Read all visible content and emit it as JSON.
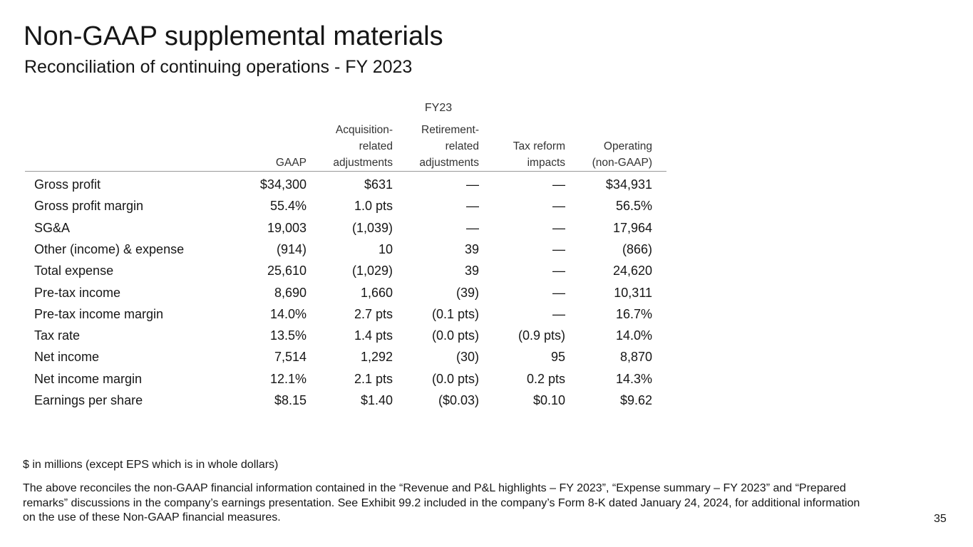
{
  "header": {
    "title": "Non-GAAP supplemental materials",
    "subtitle": "Reconciliation of continuing operations - FY 2023"
  },
  "table": {
    "group_header": "FY23",
    "columns": [
      [
        "GAAP"
      ],
      [
        "Acquisition-",
        "related",
        "adjustments"
      ],
      [
        "Retirement-",
        "related",
        "adjustments"
      ],
      [
        "Tax reform",
        "impacts"
      ],
      [
        "Operating",
        "(non-GAAP)"
      ]
    ],
    "rows": [
      [
        "Gross profit",
        "$34,300",
        "$631",
        "—",
        "—",
        "$34,931"
      ],
      [
        "Gross profit margin",
        "55.4%",
        "1.0 pts",
        "—",
        "—",
        "56.5%"
      ],
      [
        "SG&A",
        "19,003",
        "(1,039)",
        "—",
        "—",
        "17,964"
      ],
      [
        "Other (income) & expense",
        "(914)",
        "10",
        "39",
        "—",
        "(866)"
      ],
      [
        "Total expense",
        "25,610",
        "(1,029)",
        "39",
        "—",
        "24,620"
      ],
      [
        "Pre-tax income",
        "8,690",
        "1,660",
        "(39)",
        "—",
        "10,311"
      ],
      [
        "Pre-tax income margin",
        "14.0%",
        "2.7 pts",
        "(0.1 pts)",
        "—",
        "16.7%"
      ],
      [
        "Tax rate",
        "13.5%",
        "1.4 pts",
        "(0.0 pts)",
        "(0.9 pts)",
        "14.0%"
      ],
      [
        "Net income",
        "7,514",
        "1,292",
        "(30)",
        "95",
        "8,870"
      ],
      [
        "Net income margin",
        "12.1%",
        "2.1 pts",
        "(0.0 pts)",
        "0.2 pts",
        "14.3%"
      ],
      [
        "Earnings per share",
        "$8.15",
        "$1.40",
        "($0.03)",
        "$0.10",
        "$9.62"
      ]
    ]
  },
  "notes": {
    "units": "$ in millions (except EPS which is in whole dollars)",
    "text": "The above reconciles the non-GAAP financial information contained in the “Revenue and P&L highlights – FY 2023”, “Expense summary – FY 2023” and “Prepared remarks” discussions in the company’s earnings presentation. See Exhibit 99.2 included in the company’s Form 8-K dated January 24, 2024, for additional information on the use of these Non-GAAP financial measures."
  },
  "page_number": "35"
}
